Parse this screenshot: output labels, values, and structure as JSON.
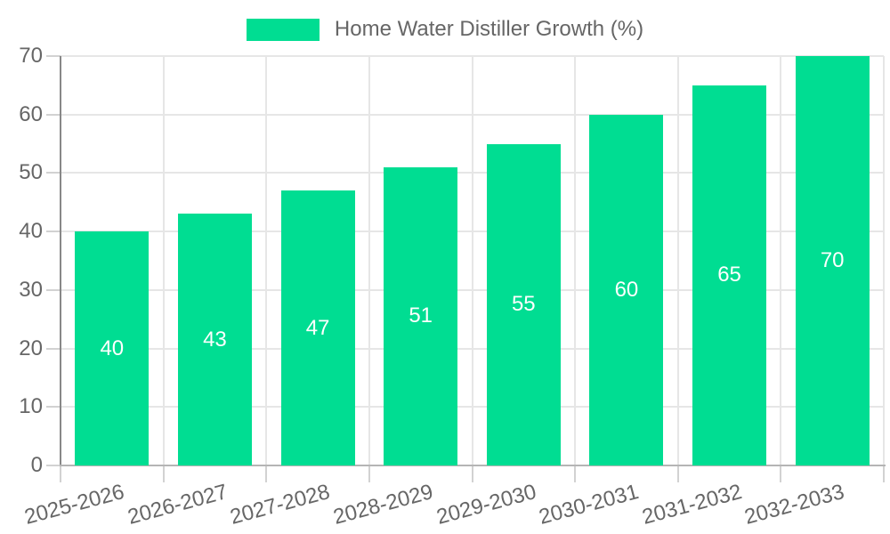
{
  "chart_data": {
    "type": "bar",
    "title": "Home Water Distiller Growth (%)",
    "xlabel": "",
    "ylabel": "",
    "categories": [
      "2025-2026",
      "2026-2027",
      "2027-2028",
      "2028-2029",
      "2029-2030",
      "2030-2031",
      "2031-2032",
      "2032-2033"
    ],
    "series": [
      {
        "name": "Home Water Distiller Growth (%)",
        "values": [
          40,
          43,
          47,
          51,
          55,
          60,
          65,
          70
        ]
      }
    ],
    "value_labels_shown": true,
    "ylim": [
      0,
      70
    ],
    "yticks": [
      0,
      10,
      20,
      30,
      40,
      50,
      60,
      70
    ],
    "grid": true,
    "legend_position": "top-center",
    "colors": {
      "bar": "#00DD92",
      "value_label": "#ffffff",
      "axis_text": "#666666",
      "grid_line": "#e6e6e6",
      "y_axis_line": "#888888",
      "x_axis_line": "#b5b5b5",
      "tick": "#d2d2d2",
      "background": "#ffffff"
    }
  },
  "legend": {
    "label": "Home Water Distiller Growth (%)",
    "swatch_color": "#00DD92"
  }
}
